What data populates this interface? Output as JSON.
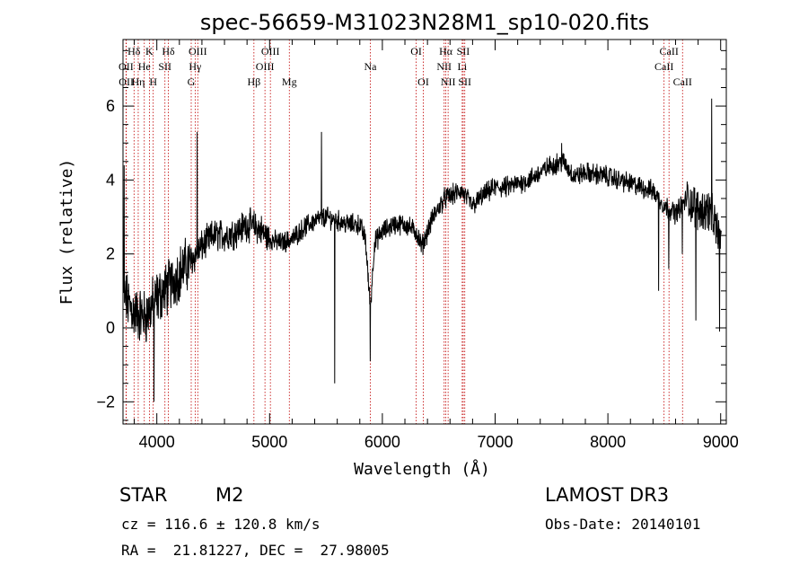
{
  "colors": {
    "axis": "#000000",
    "spectrum": "#000000",
    "line_marker": "#c00000",
    "background": "#ffffff"
  },
  "info": {
    "class": "STAR",
    "subclass": "M2",
    "velocity": "cz = 116.6 ± 120.8 km/s",
    "coords": "RA =  21.81227, DEC =  27.98005",
    "survey": "LAMOST DR3",
    "obs_date": "Obs-Date: 20140101"
  },
  "chart_data": {
    "type": "line",
    "title": "spec-56659-M31023N28M1_sp10-020.fits",
    "xlabel": "Wavelength (Å)",
    "ylabel": "Flux (relative)",
    "xlim": [
      3700,
      9050
    ],
    "ylim": [
      -2.6,
      7.8
    ],
    "xticks": [
      4000,
      5000,
      6000,
      7000,
      8000,
      9000
    ],
    "yticks": [
      -2,
      0,
      2,
      4,
      6
    ],
    "xtick_labels": [
      "4000",
      "5000",
      "6000",
      "7000",
      "8000",
      "9000"
    ],
    "ytick_labels": [
      "−2",
      "0",
      "2",
      "4",
      "6"
    ],
    "spectral_lines": [
      {
        "label": "Hδ",
        "wavelength": 3798,
        "row": 0
      },
      {
        "label": "K",
        "wavelength": 3934,
        "row": 0
      },
      {
        "label": "Hδ",
        "wavelength": 4102,
        "row": 0
      },
      {
        "label": "OIII",
        "wavelength": 4363,
        "row": 0
      },
      {
        "label": "OIII",
        "wavelength": 5007,
        "row": 0
      },
      {
        "label": "OI",
        "wavelength": 6300,
        "row": 0
      },
      {
        "label": "Hα",
        "wavelength": 6563,
        "row": 0
      },
      {
        "label": "SII",
        "wavelength": 6717,
        "row": 0
      },
      {
        "label": "CaII",
        "wavelength": 8542,
        "row": 0
      },
      {
        "label": "OII",
        "wavelength": 3727,
        "row": 1
      },
      {
        "label": "He",
        "wavelength": 3889,
        "row": 1
      },
      {
        "label": "SII",
        "wavelength": 4072,
        "row": 1
      },
      {
        "label": "Hγ",
        "wavelength": 4340,
        "row": 1
      },
      {
        "label": "OIII",
        "wavelength": 4959,
        "row": 1
      },
      {
        "label": "Na",
        "wavelength": 5893,
        "row": 1
      },
      {
        "label": "NII",
        "wavelength": 6548,
        "row": 1
      },
      {
        "label": "Li",
        "wavelength": 6708,
        "row": 1
      },
      {
        "label": "CaII",
        "wavelength": 8498,
        "row": 1
      },
      {
        "label": "OII",
        "wavelength": 3729,
        "row": 2
      },
      {
        "label": "Hη",
        "wavelength": 3835,
        "row": 2
      },
      {
        "label": "H",
        "wavelength": 3968,
        "row": 2
      },
      {
        "label": "G",
        "wavelength": 4305,
        "row": 2
      },
      {
        "label": "Hβ",
        "wavelength": 4861,
        "row": 2
      },
      {
        "label": "Mg",
        "wavelength": 5175,
        "row": 2
      },
      {
        "label": "OI",
        "wavelength": 6363,
        "row": 2
      },
      {
        "label": "NII",
        "wavelength": 6583,
        "row": 2
      },
      {
        "label": "SII",
        "wavelength": 6731,
        "row": 2
      },
      {
        "label": "CaII",
        "wavelength": 8662,
        "row": 2
      }
    ],
    "continuum": [
      [
        3700,
        0.9
      ],
      [
        3800,
        0.4
      ],
      [
        3900,
        0.3
      ],
      [
        4000,
        0.8
      ],
      [
        4100,
        1.1
      ],
      [
        4200,
        1.5
      ],
      [
        4300,
        1.8
      ],
      [
        4400,
        2.2
      ],
      [
        4500,
        2.5
      ],
      [
        4600,
        2.5
      ],
      [
        4700,
        2.6
      ],
      [
        4800,
        2.8
      ],
      [
        4900,
        2.7
      ],
      [
        5000,
        2.4
      ],
      [
        5100,
        2.3
      ],
      [
        5200,
        2.4
      ],
      [
        5300,
        2.7
      ],
      [
        5400,
        2.9
      ],
      [
        5500,
        3.0
      ],
      [
        5600,
        2.9
      ],
      [
        5700,
        2.8
      ],
      [
        5800,
        2.8
      ],
      [
        5850,
        2.4
      ],
      [
        5893,
        0.5
      ],
      [
        5930,
        2.3
      ],
      [
        6000,
        2.6
      ],
      [
        6100,
        2.8
      ],
      [
        6200,
        2.8
      ],
      [
        6300,
        2.6
      ],
      [
        6350,
        2.2
      ],
      [
        6450,
        3.0
      ],
      [
        6550,
        3.5
      ],
      [
        6700,
        3.7
      ],
      [
        6800,
        3.3
      ],
      [
        6900,
        3.6
      ],
      [
        7000,
        3.8
      ],
      [
        7100,
        3.8
      ],
      [
        7300,
        4.0
      ],
      [
        7500,
        4.4
      ],
      [
        7600,
        4.5
      ],
      [
        7700,
        4.1
      ],
      [
        7800,
        4.2
      ],
      [
        8000,
        4.1
      ],
      [
        8200,
        3.9
      ],
      [
        8400,
        3.7
      ],
      [
        8500,
        3.3
      ],
      [
        8600,
        3.1
      ],
      [
        8700,
        3.5
      ],
      [
        8800,
        3.2
      ],
      [
        8900,
        3.2
      ],
      [
        9000,
        2.4
      ]
    ],
    "features": [
      [
        5460,
        5.3
      ],
      [
        5578,
        -1.5
      ],
      [
        5893,
        -0.9
      ],
      [
        4358,
        5.3
      ],
      [
        3975,
        -2.0
      ],
      [
        8450,
        1.0
      ],
      [
        8540,
        1.6
      ],
      [
        8660,
        2.0
      ],
      [
        8780,
        0.2
      ],
      [
        8920,
        6.2
      ],
      [
        8990,
        -0.1
      ],
      [
        7590,
        5.0
      ],
      [
        3710,
        4.4
      ]
    ]
  }
}
